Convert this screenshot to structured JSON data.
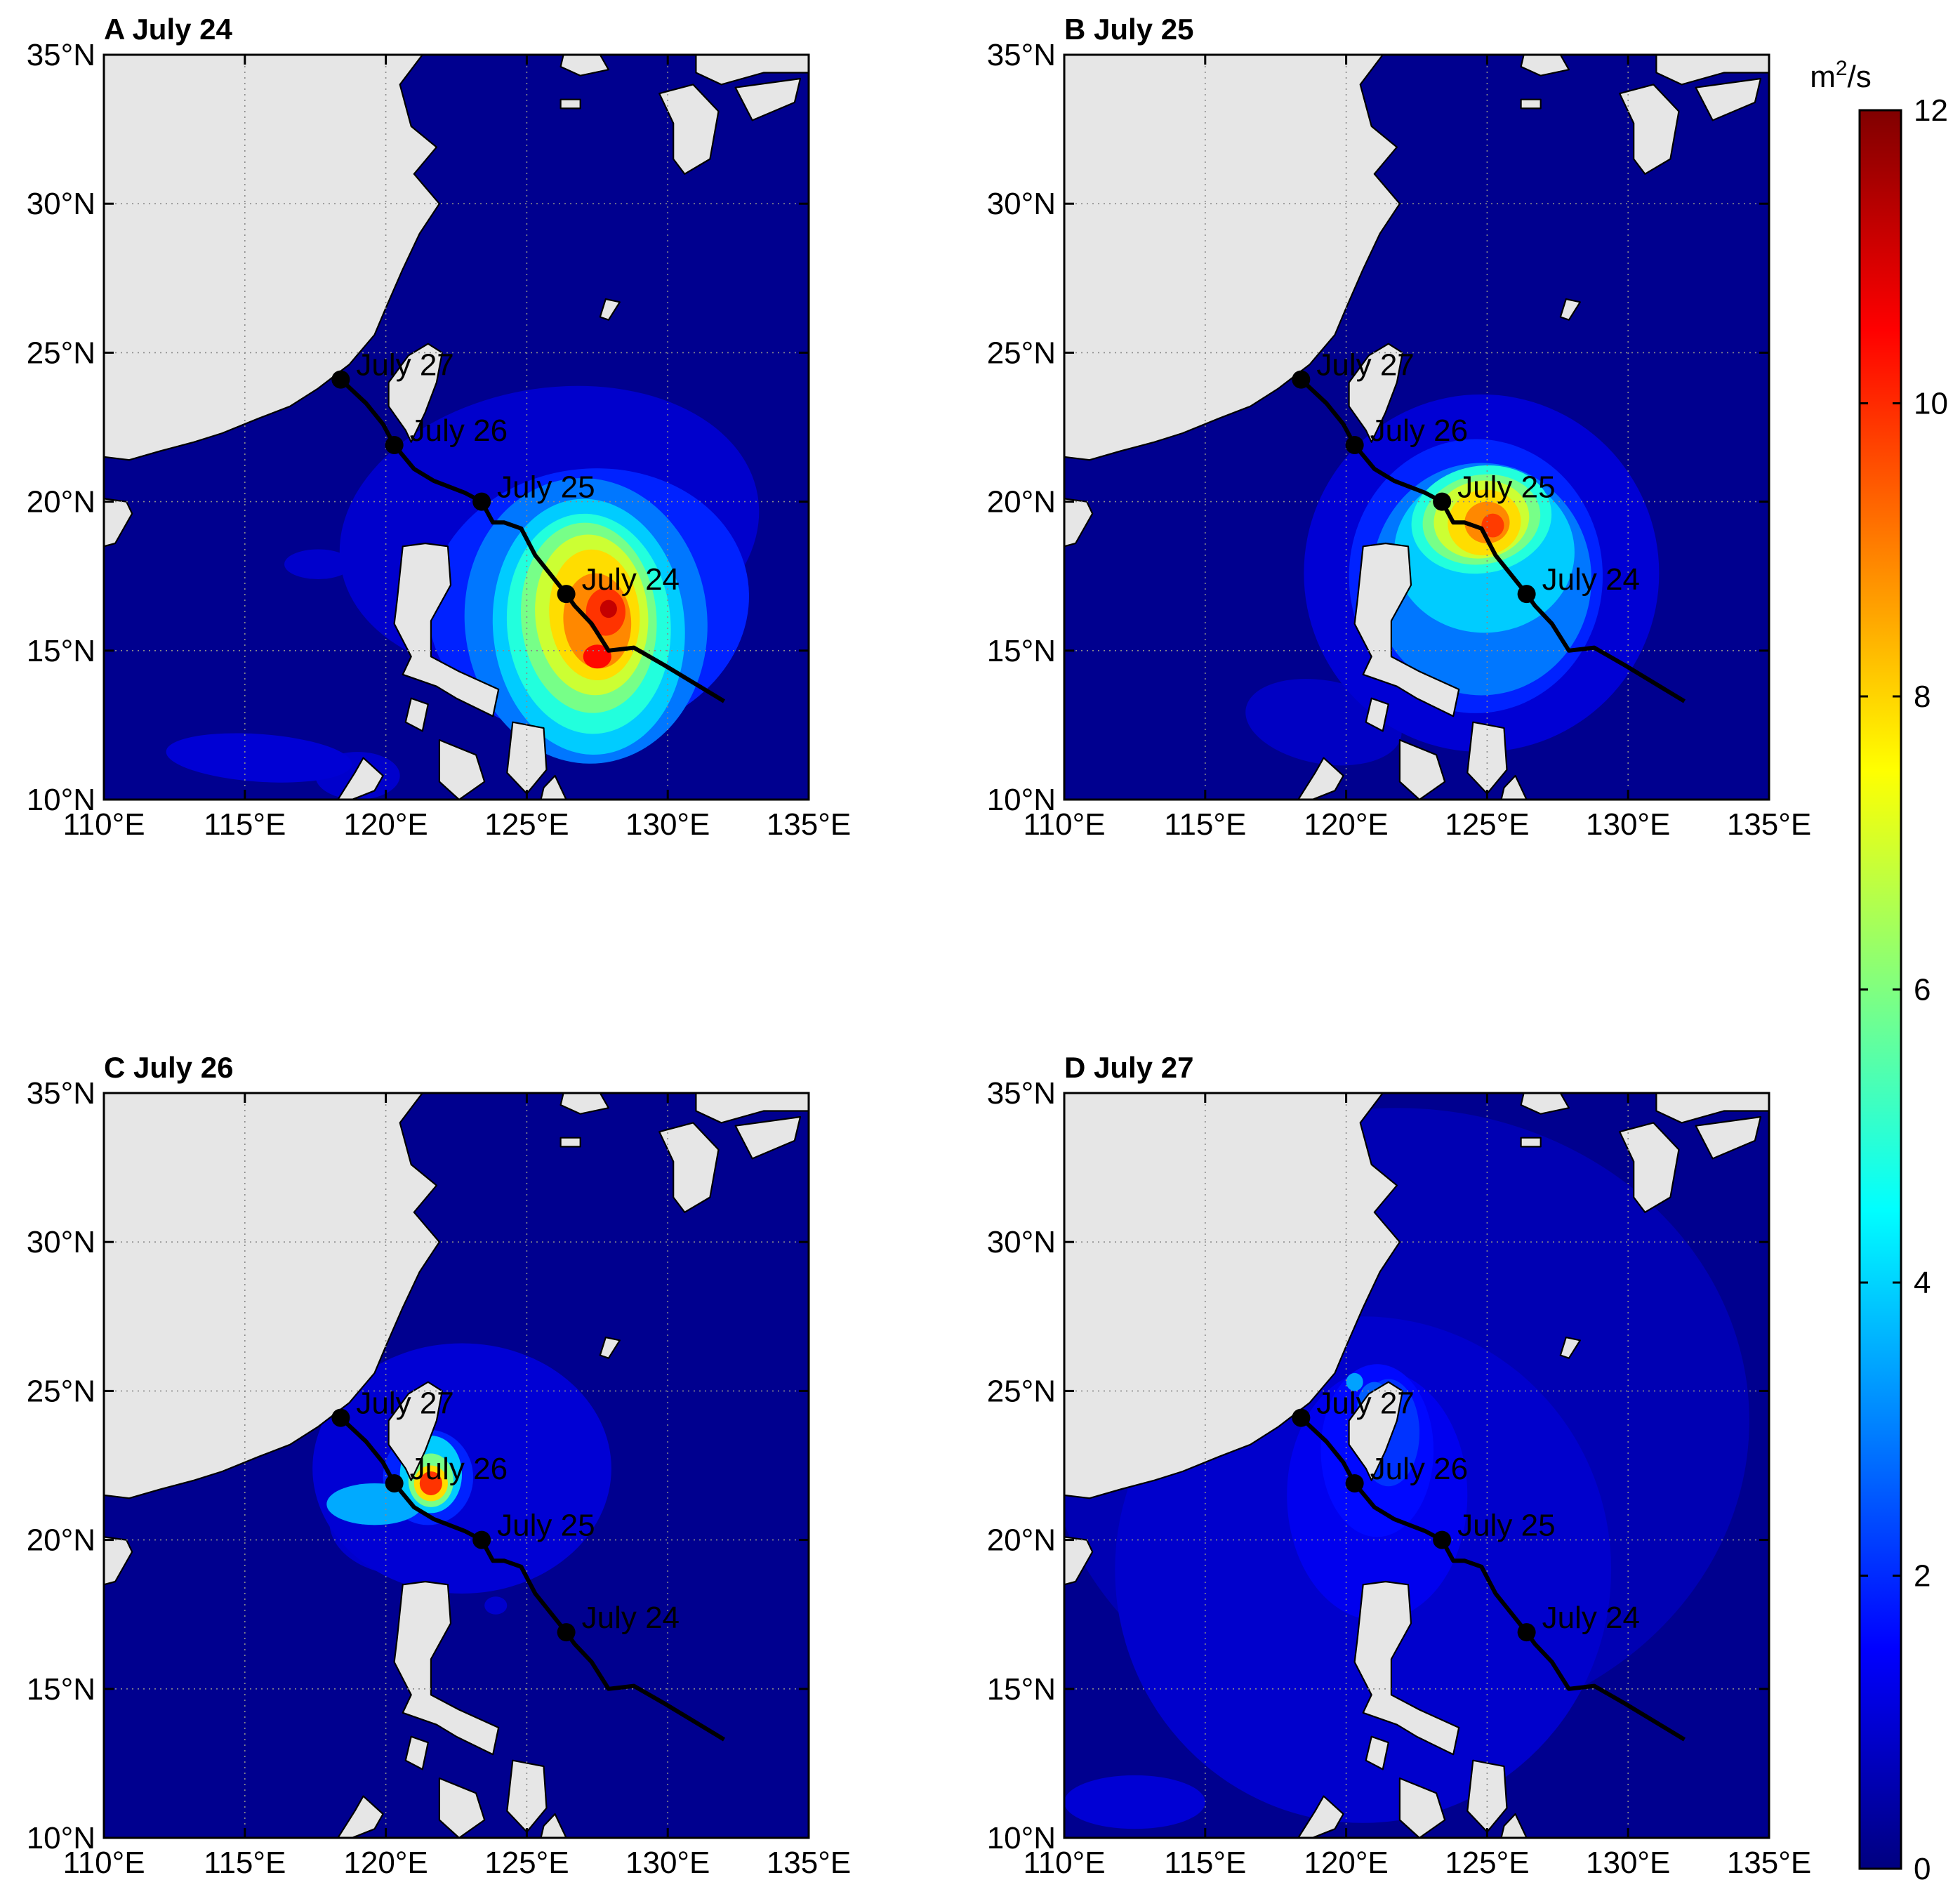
{
  "figure": {
    "panels": [
      {
        "id": "A",
        "title": "A July 24",
        "day": "July 24"
      },
      {
        "id": "B",
        "title": "B July 25",
        "day": "July 25"
      },
      {
        "id": "C",
        "title": "C July 26",
        "day": "July 26"
      },
      {
        "id": "D",
        "title": "D July 27",
        "day": "July 27"
      }
    ],
    "lon_ticks": [
      "110°E",
      "115°E",
      "120°E",
      "125°E",
      "130°E",
      "135°E"
    ],
    "lat_ticks": [
      "10°N",
      "15°N",
      "20°N",
      "25°N",
      "30°N",
      "35°N"
    ],
    "lon_range": [
      110,
      135
    ],
    "lat_range": [
      10,
      35
    ],
    "grid": "dotted",
    "land_color": "#e6e6e6",
    "sea_color": "#00008f",
    "track_color": "#000000"
  },
  "colorbar": {
    "unit_base": "m",
    "unit_exp": "2",
    "unit_rest": "/s",
    "ticks": [
      "0",
      "2",
      "4",
      "6",
      "8",
      "10",
      "12"
    ],
    "range": [
      0,
      12
    ],
    "colormap": "jet"
  },
  "track": {
    "points": [
      {
        "label": "July 24",
        "lon": 126.4,
        "lat": 16.9
      },
      {
        "label": "July 25",
        "lon": 123.4,
        "lat": 20.0
      },
      {
        "label": "July 26",
        "lon": 120.3,
        "lat": 21.9
      },
      {
        "label": "July 27",
        "lon": 118.4,
        "lat": 24.1
      }
    ],
    "path": [
      [
        132.0,
        13.3
      ],
      [
        129.9,
        14.5
      ],
      [
        128.8,
        15.1
      ],
      [
        127.9,
        15.0
      ],
      [
        127.3,
        15.9
      ],
      [
        126.7,
        16.5
      ],
      [
        126.4,
        16.9
      ],
      [
        125.3,
        18.2
      ],
      [
        124.8,
        19.1
      ],
      [
        124.2,
        19.3
      ],
      [
        123.8,
        19.3
      ],
      [
        123.4,
        20.0
      ],
      [
        122.8,
        20.3
      ],
      [
        121.7,
        20.7
      ],
      [
        121.0,
        21.1
      ],
      [
        120.3,
        21.9
      ],
      [
        119.9,
        22.6
      ],
      [
        119.3,
        23.3
      ],
      [
        118.4,
        24.1
      ]
    ]
  },
  "fields": {
    "A": [
      {
        "level": 0.9,
        "lon": 125.8,
        "lat": 19.0,
        "rx": 7.5,
        "ry": 4.8,
        "rot": -10
      },
      {
        "level": 1.9,
        "lon": 127.2,
        "lat": 16.6,
        "rx": 5.7,
        "ry": 4.5,
        "rot": -8
      },
      {
        "level": 2.9,
        "lon": 127.1,
        "lat": 16.0,
        "rx": 4.3,
        "ry": 4.8,
        "rot": -6
      },
      {
        "level": 3.9,
        "lon": 127.2,
        "lat": 15.8,
        "rx": 3.4,
        "ry": 4.3,
        "rot": -5
      },
      {
        "level": 4.9,
        "lon": 127.2,
        "lat": 15.9,
        "rx": 2.9,
        "ry": 3.7,
        "rot": -5
      },
      {
        "level": 5.9,
        "lon": 127.2,
        "lat": 16.1,
        "rx": 2.4,
        "ry": 3.2,
        "rot": -5
      },
      {
        "level": 6.9,
        "lon": 127.3,
        "lat": 16.2,
        "rx": 2.0,
        "ry": 2.7,
        "rot": -5
      },
      {
        "level": 7.9,
        "lon": 127.4,
        "lat": 16.2,
        "rx": 1.6,
        "ry": 2.2,
        "rot": -5
      },
      {
        "level": 8.9,
        "lon": 127.5,
        "lat": 16.0,
        "rx": 1.2,
        "ry": 1.6,
        "rot": -5
      },
      {
        "level": 9.9,
        "lon": 127.8,
        "lat": 16.3,
        "rx": 0.7,
        "ry": 0.8,
        "rot": 0
      },
      {
        "level": 10.4,
        "lon": 127.5,
        "lat": 14.8,
        "rx": 0.5,
        "ry": 0.4,
        "rot": 0
      },
      {
        "level": 11.2,
        "lon": 127.9,
        "lat": 16.4,
        "rx": 0.3,
        "ry": 0.3,
        "rot": 0
      },
      {
        "level": 1.0,
        "lon": 115.5,
        "lat": 11.4,
        "rx": 3.3,
        "ry": 0.8,
        "rot": 4
      },
      {
        "level": 0.9,
        "lon": 117.6,
        "lat": 17.9,
        "rx": 1.2,
        "ry": 0.5,
        "rot": 0
      },
      {
        "level": 0.9,
        "lon": 119.0,
        "lat": 10.8,
        "rx": 1.5,
        "ry": 0.8,
        "rot": 0
      }
    ],
    "B": [
      {
        "level": 1.0,
        "lon": 124.8,
        "lat": 17.6,
        "rx": 6.3,
        "ry": 6.0,
        "rot": 0
      },
      {
        "level": 0.8,
        "lon": 119.2,
        "lat": 12.6,
        "rx": 2.8,
        "ry": 1.4,
        "rot": 10
      },
      {
        "level": 1.9,
        "lon": 124.6,
        "lat": 17.5,
        "rx": 4.5,
        "ry": 4.6,
        "rot": 0
      },
      {
        "level": 2.9,
        "lon": 124.8,
        "lat": 17.4,
        "rx": 3.9,
        "ry": 3.9,
        "rot": 0
      },
      {
        "level": 3.9,
        "lon": 124.9,
        "lat": 18.3,
        "rx": 3.2,
        "ry": 2.7,
        "rot": 0
      },
      {
        "level": 4.9,
        "lon": 124.8,
        "lat": 19.4,
        "rx": 2.5,
        "ry": 1.8,
        "rot": -10
      },
      {
        "level": 5.9,
        "lon": 124.8,
        "lat": 19.4,
        "rx": 2.1,
        "ry": 1.5,
        "rot": -10
      },
      {
        "level": 6.9,
        "lon": 124.8,
        "lat": 19.4,
        "rx": 1.7,
        "ry": 1.3,
        "rot": -10
      },
      {
        "level": 7.9,
        "lon": 124.9,
        "lat": 19.3,
        "rx": 1.3,
        "ry": 1.1,
        "rot": -10
      },
      {
        "level": 8.9,
        "lon": 125.0,
        "lat": 19.3,
        "rx": 0.8,
        "ry": 0.7,
        "rot": 0
      },
      {
        "level": 9.8,
        "lon": 125.2,
        "lat": 19.2,
        "rx": 0.4,
        "ry": 0.4,
        "rot": 0
      }
    ],
    "C": [
      {
        "level": 1.0,
        "lon": 122.7,
        "lat": 22.4,
        "rx": 5.3,
        "ry": 4.2,
        "rot": 0
      },
      {
        "level": 0.9,
        "lon": 120.8,
        "lat": 20.6,
        "rx": 2.8,
        "ry": 1.8,
        "rot": 0
      },
      {
        "level": 1.9,
        "lon": 121.5,
        "lat": 22.1,
        "rx": 1.6,
        "ry": 1.6,
        "rot": 0
      },
      {
        "level": 3.5,
        "lon": 119.6,
        "lat": 21.2,
        "rx": 1.7,
        "ry": 0.7,
        "rot": 0
      },
      {
        "level": 3.9,
        "lon": 121.6,
        "lat": 22.2,
        "rx": 1.1,
        "ry": 1.3,
        "rot": 0
      },
      {
        "level": 5.9,
        "lon": 121.6,
        "lat": 22.0,
        "rx": 0.8,
        "ry": 0.9,
        "rot": 0
      },
      {
        "level": 7.9,
        "lon": 121.6,
        "lat": 21.9,
        "rx": 0.6,
        "ry": 0.6,
        "rot": 0
      },
      {
        "level": 9.9,
        "lon": 121.6,
        "lat": 21.9,
        "rx": 0.4,
        "ry": 0.4,
        "rot": 0
      },
      {
        "level": 0.9,
        "lon": 123.9,
        "lat": 17.8,
        "rx": 0.4,
        "ry": 0.3,
        "rot": 0
      }
    ],
    "D": [
      {
        "level": 0.6,
        "lon": 121.8,
        "lat": 24.0,
        "rx": 12.5,
        "ry": 10.5,
        "rot": 0
      },
      {
        "level": 0.9,
        "lon": 120.6,
        "lat": 19.0,
        "rx": 8.8,
        "ry": 8.5,
        "rot": 0
      },
      {
        "level": 1.3,
        "lon": 121.1,
        "lat": 21.5,
        "rx": 3.2,
        "ry": 4.2,
        "rot": 0
      },
      {
        "level": 1.6,
        "lon": 121.1,
        "lat": 23.0,
        "rx": 2.0,
        "ry": 2.9,
        "rot": 0
      },
      {
        "level": 2.1,
        "lon": 121.5,
        "lat": 23.6,
        "rx": 1.1,
        "ry": 1.8,
        "rot": 0
      },
      {
        "level": 2.6,
        "lon": 121.0,
        "lat": 24.5,
        "rx": 0.6,
        "ry": 0.8,
        "rot": 0
      },
      {
        "level": 3.4,
        "lon": 120.3,
        "lat": 25.3,
        "rx": 0.3,
        "ry": 0.3,
        "rot": 0
      },
      {
        "level": 1.0,
        "lon": 112.5,
        "lat": 11.2,
        "rx": 2.5,
        "ry": 0.9,
        "rot": 0
      }
    ]
  }
}
